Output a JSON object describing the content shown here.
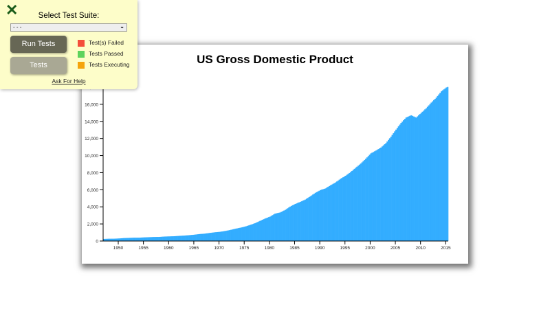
{
  "chart_data": {
    "type": "bar",
    "title": "US Gross Domestic Product",
    "xlabel": "",
    "ylabel": "",
    "xlim": [
      1947,
      2015.5
    ],
    "ylim": [
      0,
      18000
    ],
    "x_ticks": [
      "1950",
      "1955",
      "1960",
      "1965",
      "1970",
      "1975",
      "1980",
      "1985",
      "1990",
      "1995",
      "2000",
      "2005",
      "2010",
      "2015"
    ],
    "y_ticks": [
      "0",
      "2,000",
      "4,000",
      "6,000",
      "8,000",
      "10,000",
      "12,000",
      "14,000",
      "16,000",
      "18,000"
    ],
    "bar_color": "#33adff",
    "grid": false,
    "x": [
      1947,
      1948,
      1949,
      1950,
      1951,
      1952,
      1953,
      1954,
      1955,
      1956,
      1957,
      1958,
      1959,
      1960,
      1961,
      1962,
      1963,
      1964,
      1965,
      1966,
      1967,
      1968,
      1969,
      1970,
      1971,
      1972,
      1973,
      1974,
      1975,
      1976,
      1977,
      1978,
      1979,
      1980,
      1981,
      1982,
      1983,
      1984,
      1985,
      1986,
      1987,
      1988,
      1989,
      1990,
      1991,
      1992,
      1993,
      1994,
      1995,
      1996,
      1997,
      1998,
      1999,
      2000,
      2001,
      2002,
      2003,
      2004,
      2005,
      2006,
      2007,
      2008,
      2009,
      2010,
      2011,
      2012,
      2013,
      2014,
      2015
    ],
    "values": [
      244,
      269,
      272,
      300,
      347,
      367,
      389,
      391,
      426,
      449,
      474,
      481,
      522,
      543,
      563,
      605,
      638,
      686,
      743,
      815,
      862,
      943,
      1019,
      1073,
      1165,
      1279,
      1425,
      1545,
      1684,
      1873,
      2082,
      2352,
      2627,
      2857,
      3207,
      3343,
      3634,
      4037,
      4339,
      4580,
      4855,
      5236,
      5642,
      5963,
      6158,
      6520,
      6858,
      7287,
      7640,
      8073,
      8577,
      9063,
      9631,
      10252,
      10582,
      10936,
      11458,
      12214,
      13037,
      13815,
      14452,
      14713,
      14449,
      14992,
      15543,
      16197,
      16785,
      17522,
      17970
    ]
  },
  "test_panel": {
    "close_icon": "close-x-icon",
    "suite_label": "Select Test Suite:",
    "suite_selected": "- - -",
    "run_button": "Run Tests",
    "tests_button": "Tests",
    "legend": [
      {
        "label": "Test(s) Failed",
        "color": "#f44e3b"
      },
      {
        "label": "Tests Passed",
        "color": "#5dd35d"
      },
      {
        "label": "Tests Executing",
        "color": "#f5a40c"
      }
    ],
    "help_link": "Ask For Help"
  }
}
